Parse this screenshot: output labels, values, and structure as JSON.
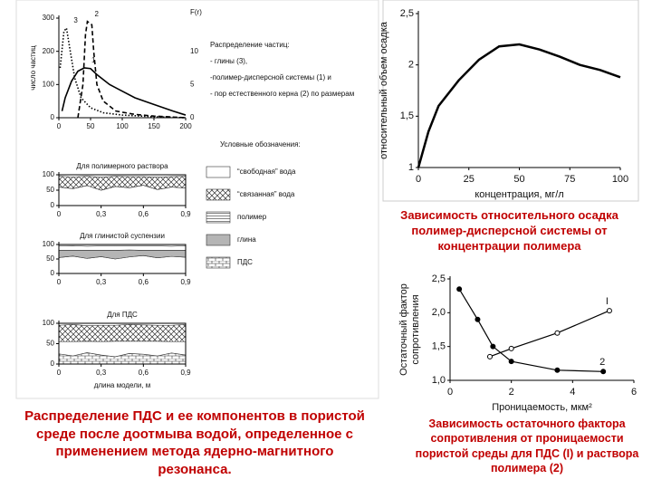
{
  "chart_data": [
    {
      "type": "line",
      "ylabel": "число частиц",
      "y2label": "F(r)",
      "xlim": [
        0,
        200
      ],
      "xticks": [
        0,
        50,
        100,
        150,
        200
      ],
      "ylim": [
        0,
        300
      ],
      "yticks": [
        0,
        100,
        200,
        300
      ],
      "y2lim": [
        0,
        15
      ],
      "y2ticks": [
        0,
        5,
        10
      ],
      "color": "#000000",
      "series": [
        {
          "name": "1",
          "style": "solid",
          "x": [
            5,
            10,
            20,
            30,
            40,
            50,
            60,
            80,
            100,
            120,
            150,
            180,
            200
          ],
          "values": [
            20,
            60,
            110,
            140,
            150,
            148,
            130,
            100,
            80,
            60,
            40,
            20,
            8
          ]
        },
        {
          "name": "2",
          "style": "dashed",
          "x": [
            30,
            38,
            42,
            45,
            52,
            55,
            60,
            70,
            90,
            120,
            150,
            200
          ],
          "values": [
            0,
            100,
            250,
            290,
            280,
            200,
            100,
            50,
            20,
            10,
            5,
            0
          ]
        },
        {
          "name": "3",
          "style": "dotted",
          "x": [
            2,
            8,
            12,
            18,
            25,
            35,
            50,
            70,
            100,
            150,
            200
          ],
          "values": [
            150,
            260,
            270,
            200,
            120,
            60,
            30,
            15,
            8,
            3,
            0
          ]
        }
      ],
      "annotations": [
        "Распределение частиц:",
        "- глины (3),",
        "-полимер-дисперсной системы (1) и",
        "- пор естественного керна (2) по размерам"
      ]
    },
    {
      "type": "stacked_area",
      "title": "Для полимерного раствора",
      "x": [
        0,
        0.1,
        0.2,
        0.3,
        0.4,
        0.5,
        0.6,
        0.7,
        0.8,
        0.9
      ],
      "xlim": [
        0,
        0.9
      ],
      "xticks": [
        0,
        {
          "value": 0.3,
          "label": "0,3"
        },
        {
          "value": 0.6,
          "label": "0,6"
        },
        {
          "value": 0.9,
          "label": "0,9"
        }
      ],
      "ylim": [
        0,
        100
      ],
      "yticks": [
        0,
        50,
        100
      ],
      "series": [
        {
          "pattern": "free",
          "values": [
            60,
            55,
            65,
            50,
            62,
            58,
            66,
            52,
            60,
            57
          ]
        },
        {
          "pattern": "bound",
          "values": [
            35,
            38,
            30,
            42,
            33,
            36,
            28,
            40,
            34,
            38
          ]
        }
      ]
    },
    {
      "type": "stacked_area",
      "title": "Для глинистой суспензии",
      "x": [
        0,
        0.1,
        0.2,
        0.3,
        0.4,
        0.5,
        0.6,
        0.7,
        0.8,
        0.9
      ],
      "xlim": [
        0,
        0.9
      ],
      "xticks": [
        0,
        {
          "value": 0.3,
          "label": "0,3"
        },
        {
          "value": 0.6,
          "label": "0,6"
        },
        {
          "value": 0.9,
          "label": "0,9"
        }
      ],
      "ylim": [
        0,
        100
      ],
      "yticks": [
        0,
        50,
        100
      ],
      "series": [
        {
          "pattern": "free",
          "values": [
            55,
            60,
            52,
            58,
            50,
            57,
            62,
            54,
            59,
            56
          ]
        },
        {
          "pattern": "clay",
          "values": [
            25,
            20,
            28,
            22,
            30,
            24,
            18,
            26,
            21,
            24
          ]
        },
        {
          "pattern": "free",
          "values": [
            15,
            16,
            14,
            15,
            16,
            14,
            15,
            15,
            14,
            16
          ]
        }
      ]
    },
    {
      "type": "stacked_area",
      "title": "Для ПДС",
      "xlabel": "длина модели, м",
      "x": [
        0,
        0.1,
        0.2,
        0.3,
        0.4,
        0.5,
        0.6,
        0.7,
        0.8,
        0.9
      ],
      "xlim": [
        0,
        0.9
      ],
      "xticks": [
        0,
        {
          "value": 0.3,
          "label": "0,3"
        },
        {
          "value": 0.6,
          "label": "0,6"
        },
        {
          "value": 0.9,
          "label": "0,9"
        }
      ],
      "ylim": [
        0,
        100
      ],
      "yticks": [
        0,
        50,
        100
      ],
      "series": [
        {
          "pattern": "pds",
          "values": [
            25,
            20,
            28,
            22,
            18,
            26,
            24,
            20,
            27,
            22
          ]
        },
        {
          "pattern": "free",
          "values": [
            30,
            35,
            28,
            33,
            38,
            30,
            32,
            36,
            28,
            33
          ]
        },
        {
          "pattern": "bound",
          "values": [
            40,
            42,
            38,
            40,
            39,
            41,
            40,
            39,
            40,
            42
          ]
        }
      ]
    },
    {
      "type": "line",
      "xlabel": "концентрация, мг/л",
      "ylabel": "относительный объем осадка",
      "xlim": [
        0,
        100
      ],
      "xticks": [
        0,
        25,
        50,
        75,
        100
      ],
      "ylim": [
        1,
        2.5
      ],
      "yticks": [
        1,
        {
          "value": 1.5,
          "label": "1,5"
        },
        2,
        {
          "value": 2.5,
          "label": "2,5"
        }
      ],
      "color": "#000000",
      "series": [
        {
          "style": "solid",
          "x": [
            0,
            5,
            10,
            20,
            30,
            40,
            50,
            60,
            70,
            80,
            90,
            100
          ],
          "values": [
            1,
            1.35,
            1.6,
            1.85,
            2.05,
            2.18,
            2.2,
            2.15,
            2.08,
            2.0,
            1.95,
            1.88
          ]
        }
      ]
    },
    {
      "type": "scatter",
      "lines": true,
      "xlabel": "Проницаемость, мкм²",
      "ylabel": [
        "Остаточный фактор",
        "сопротивления"
      ],
      "xlim": [
        0,
        6
      ],
      "xticks": [
        0,
        2,
        4,
        6
      ],
      "ylim": [
        1,
        2.5
      ],
      "yticks": [
        {
          "value": 1,
          "label": "1,0"
        },
        {
          "value": 1.5,
          "label": "1,5"
        },
        {
          "value": 2,
          "label": "2,0"
        },
        {
          "value": 2.5,
          "label": "2,5"
        }
      ],
      "color": "#000000",
      "series": [
        {
          "name": "I",
          "marker": "open",
          "x": [
            1.3,
            2.0,
            3.5,
            5.2
          ],
          "values": [
            1.35,
            1.47,
            1.7,
            2.03
          ]
        },
        {
          "name": "2",
          "marker": "filled",
          "x": [
            0.3,
            0.9,
            1.4,
            2.0,
            3.5,
            5.0
          ],
          "values": [
            2.35,
            1.9,
            1.5,
            1.28,
            1.15,
            1.13
          ]
        }
      ]
    }
  ],
  "legend": {
    "title": "Условные обозначения:",
    "items": [
      {
        "label": "“свободная” вода",
        "pattern": "free"
      },
      {
        "label": "“связанная” вода",
        "pattern": "bound"
      },
      {
        "label": "полимер",
        "pattern": "polymer"
      },
      {
        "label": "глина",
        "pattern": "clay"
      },
      {
        "label": "ПДС",
        "pattern": "pds"
      }
    ]
  },
  "captions": [
    "Распределение ПДС и ее компонентов в пористой среде после доотмыва водой, определенное с применением метода ядерно-магнитного резонанса.",
    "Зависимость относительного осадка полимер-дисперсной системы от концентрации полимера",
    "Зависимость остаточного фактора сопротивления от проницаемости пористой среды для ПДС (I) и раствора полимера (2)"
  ]
}
